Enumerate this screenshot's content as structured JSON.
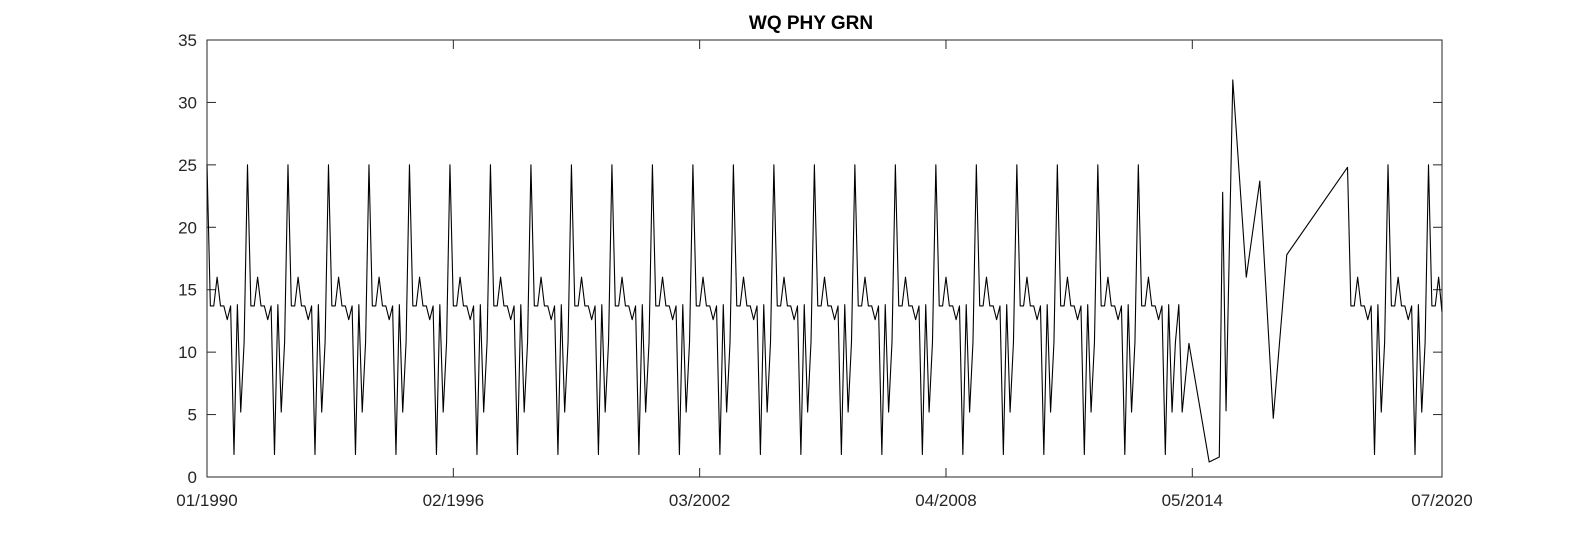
{
  "chart_data": {
    "type": "line",
    "title": "WQ PHY GRN",
    "xlabel": "",
    "ylabel": "",
    "x_range": [
      "1990-01",
      "2020-07"
    ],
    "ylim": [
      0,
      35
    ],
    "x_ticks": [
      "01/1990",
      "02/1996",
      "03/2002",
      "04/2008",
      "05/2014",
      "07/2020"
    ],
    "y_ticks": [
      "0",
      "5",
      "10",
      "15",
      "20",
      "25",
      "30",
      "35"
    ],
    "grid": false,
    "legend": "none",
    "line_color": "#000000",
    "series": [
      {
        "seasonal_pattern": [
          25,
          13.7,
          13.7,
          16,
          13.7,
          13.7,
          12.6,
          13.7,
          1.8,
          13.8,
          5.2,
          10.8
        ],
        "repeat_years": {
          "from": 1990,
          "to": 2013
        },
        "values": [
          [
            "2014-01",
            13.8
          ],
          [
            "2014-02",
            5.2
          ],
          [
            "2014-04",
            10.7
          ],
          [
            "2014-10",
            1.2
          ],
          [
            "2015-01",
            1.6
          ],
          [
            "2015-02",
            22.8
          ],
          [
            "2015-03",
            5.3
          ],
          [
            "2015-05",
            31.8
          ],
          [
            "2015-09",
            16.0
          ],
          [
            "2016-01",
            23.7
          ],
          [
            "2016-05",
            4.7
          ],
          [
            "2016-09",
            17.8
          ],
          [
            "2018-03",
            24.8
          ],
          [
            "2018-04",
            13.7
          ],
          [
            "2018-05",
            13.7
          ],
          [
            "2018-06",
            16.0
          ],
          [
            "2018-07",
            13.7
          ],
          [
            "2018-08",
            13.7
          ],
          [
            "2018-09",
            12.6
          ],
          [
            "2018-10",
            13.7
          ],
          [
            "2018-11",
            1.8
          ],
          [
            "2018-12",
            13.8
          ],
          [
            "2019-01",
            5.2
          ],
          [
            "2019-02",
            10.8
          ],
          [
            "2019-03",
            25
          ],
          [
            "2019-04",
            13.7
          ],
          [
            "2019-05",
            13.7
          ],
          [
            "2019-06",
            16.0
          ],
          [
            "2019-07",
            13.7
          ],
          [
            "2019-08",
            13.7
          ],
          [
            "2019-09",
            12.6
          ],
          [
            "2019-10",
            13.7
          ],
          [
            "2019-11",
            1.8
          ],
          [
            "2019-12",
            13.8
          ],
          [
            "2020-01",
            5.2
          ],
          [
            "2020-02",
            10.8
          ],
          [
            "2020-03",
            25
          ],
          [
            "2020-04",
            13.7
          ],
          [
            "2020-05",
            13.7
          ],
          [
            "2020-06",
            16.0
          ],
          [
            "2020-07",
            13.2
          ]
        ]
      }
    ]
  }
}
